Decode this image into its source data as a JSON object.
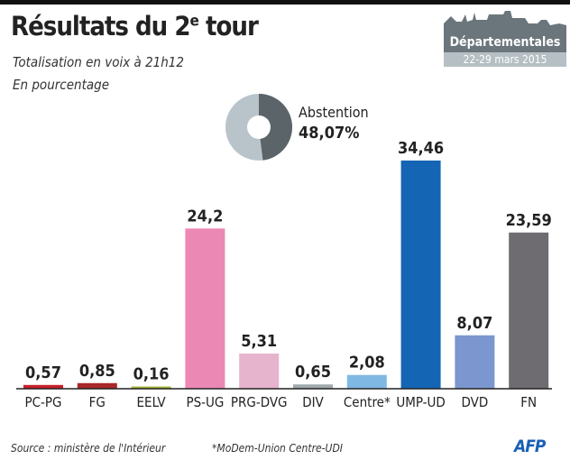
{
  "header": {
    "title_main": "Résultats du 2",
    "title_sup": "e",
    "title_end": " tour",
    "subtitle1": "Totalisation en voix à 21h12",
    "subtitle2": "En pourcentage"
  },
  "badge": {
    "name": "Départementales",
    "dates": "22-29 mars 2015"
  },
  "footer": {
    "source": "Source : ministère de l'Intérieur",
    "note": "*MoDem-Union Centre-UDI",
    "logo": "AFP"
  },
  "chart_data": [
    {
      "type": "bar",
      "title": "",
      "categories": [
        "PC-PG",
        "FG",
        "EELV",
        "PS-UG",
        "PRG-DVG",
        "DIV",
        "Centre*",
        "UMP-UD",
        "DVD",
        "FN"
      ],
      "values": [
        0.57,
        0.85,
        0.16,
        24.2,
        5.31,
        0.65,
        2.08,
        34.46,
        8.07,
        23.59
      ],
      "labels": [
        "0,57",
        "0,85",
        "0,16",
        "24,2",
        "5,31",
        "0,65",
        "2,08",
        "34,46",
        "8,07",
        "23,59"
      ],
      "colors": [
        "#c8202a",
        "#a8282a",
        "#a6b43a",
        "#ec88b4",
        "#e6b4cd",
        "#a0a9ad",
        "#80b8e4",
        "#1565b5",
        "#7c97cf",
        "#6f6c71"
      ],
      "ylim": [
        0,
        34.46
      ],
      "grid": false
    },
    {
      "type": "pie",
      "label": "Abstention",
      "value": 48.07,
      "value_label": "48,07%",
      "colors": [
        "#5b6469",
        "#b8c4ca"
      ]
    }
  ]
}
